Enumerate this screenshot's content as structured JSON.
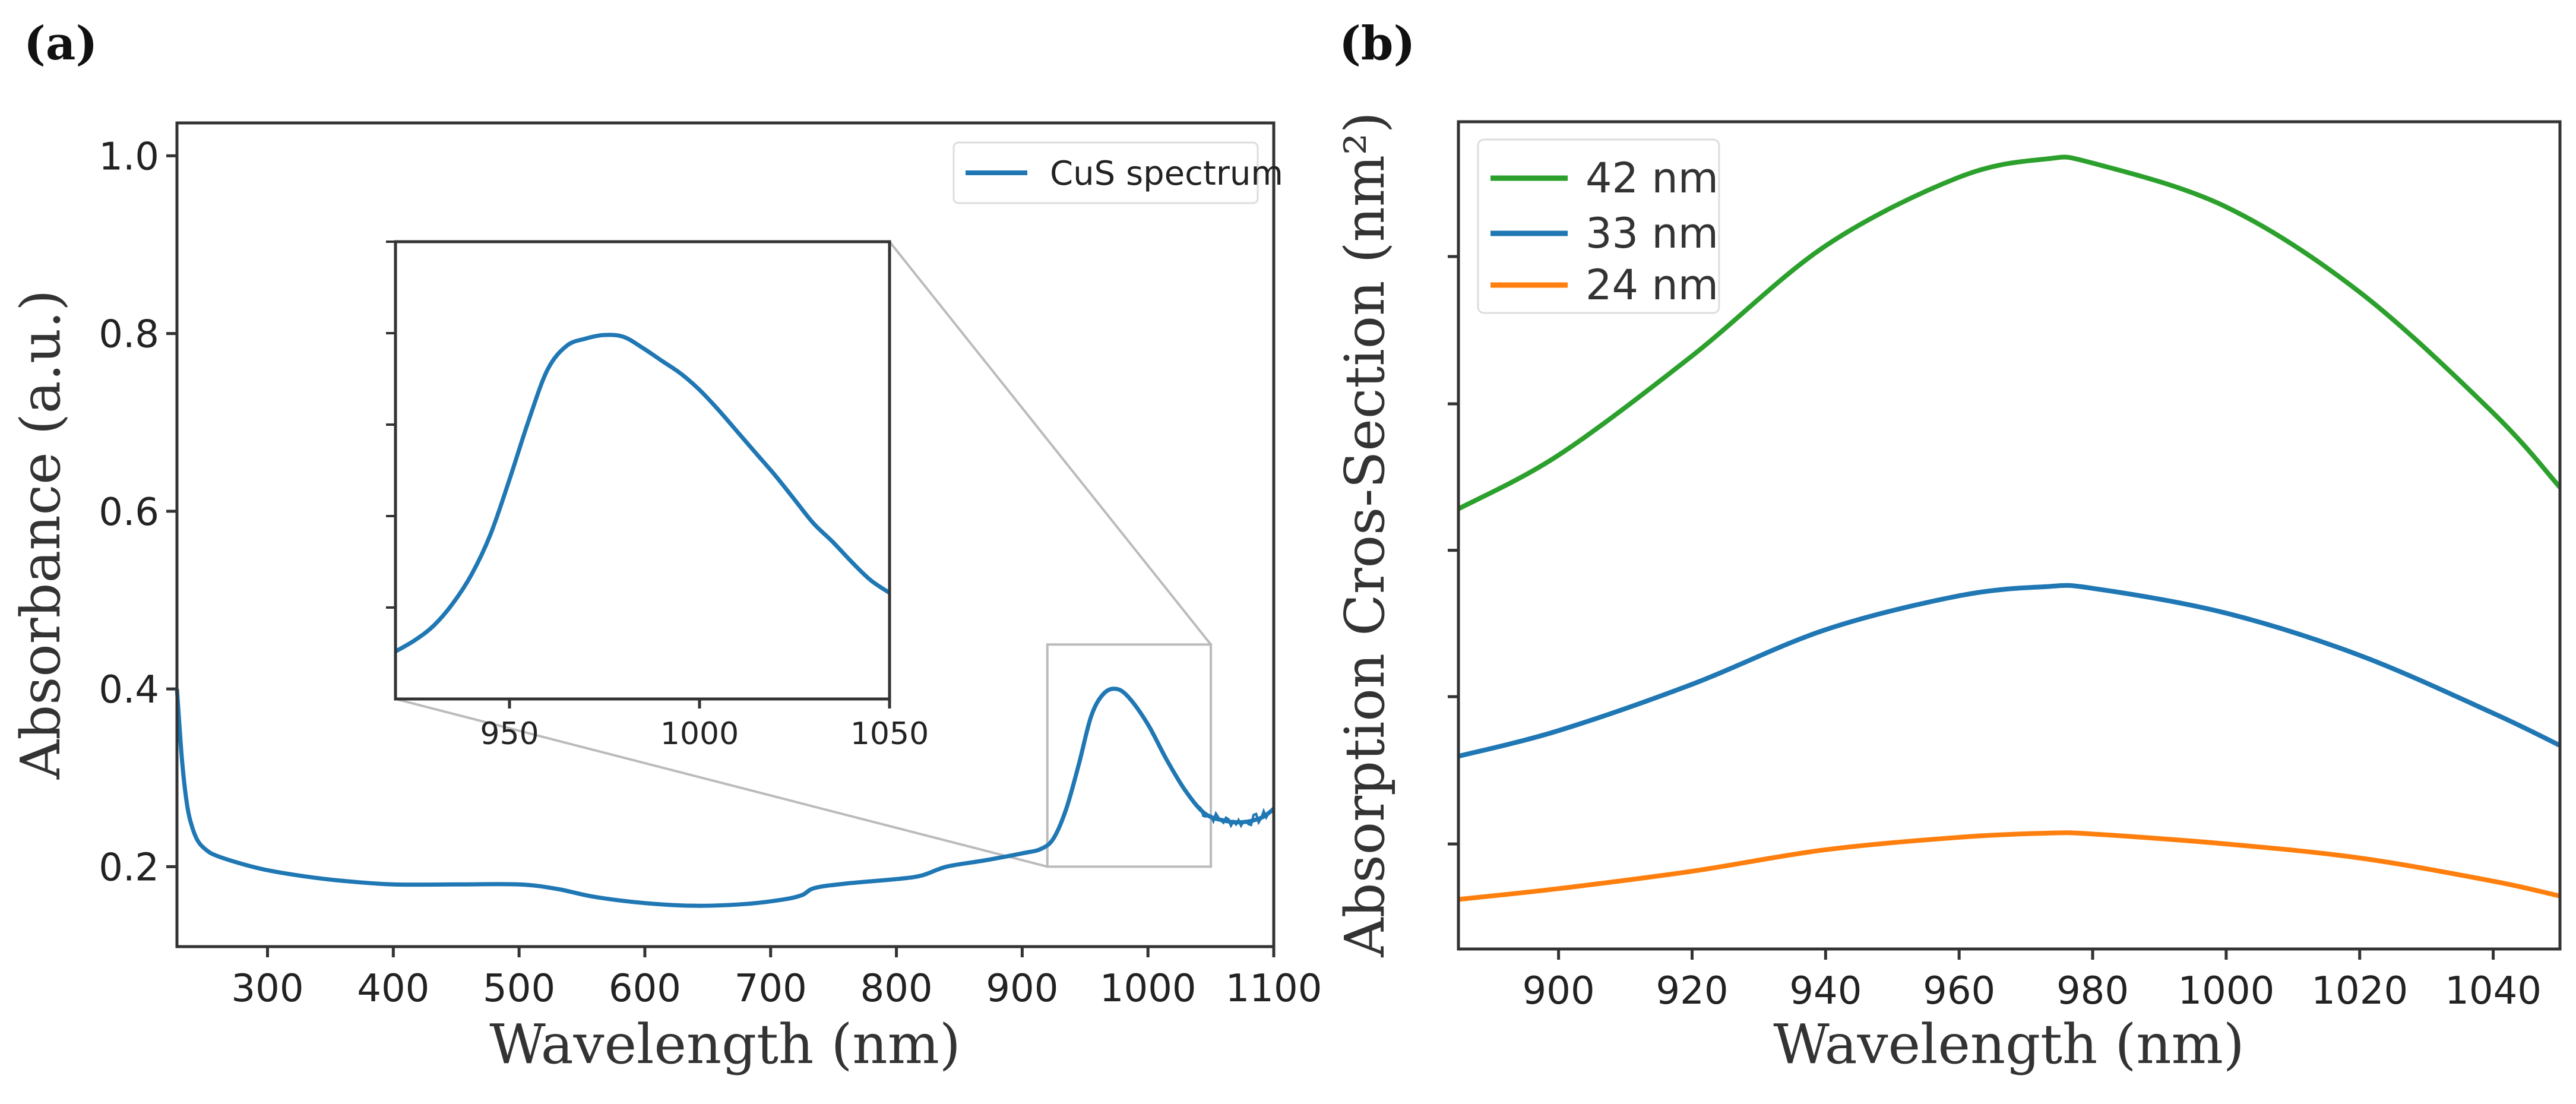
{
  "chart_data": [
    {
      "panel": "(a)",
      "type": "line",
      "xlabel": "Wavelength (nm)",
      "ylabel": "Absorbance (a.u.)",
      "xlim": [
        228,
        1100
      ],
      "ylim": [
        0.11,
        1.037
      ],
      "xticks": [
        300,
        400,
        500,
        600,
        700,
        800,
        900,
        1000,
        1100
      ],
      "yticks": [
        0.2,
        0.4,
        0.6,
        0.8,
        1.0
      ],
      "ytick_labels": [
        "0.2",
        "0.4",
        "0.6",
        "0.8",
        "1.0"
      ],
      "grid": false,
      "legend": {
        "placement": "top-right",
        "entries": [
          "CuS spectrum"
        ]
      },
      "series": [
        {
          "name": "CuS spectrum",
          "color": "#1f77b4",
          "x": [
            228,
            232,
            236,
            240,
            245,
            252,
            260,
            280,
            300,
            330,
            360,
            400,
            450,
            500,
            530,
            560,
            600,
            640,
            680,
            710,
            725,
            735,
            760,
            800,
            820,
            840,
            870,
            900,
            915,
            925,
            935,
            945,
            955,
            965,
            975,
            985,
            1000,
            1015,
            1030,
            1045,
            1060,
            1075,
            1090,
            1100
          ],
          "y": [
            0.4,
            0.32,
            0.27,
            0.245,
            0.228,
            0.218,
            0.212,
            0.203,
            0.196,
            0.189,
            0.184,
            0.18,
            0.18,
            0.18,
            0.175,
            0.166,
            0.159,
            0.156,
            0.158,
            0.163,
            0.168,
            0.176,
            0.181,
            0.186,
            0.19,
            0.2,
            0.207,
            0.215,
            0.22,
            0.232,
            0.265,
            0.315,
            0.37,
            0.395,
            0.4,
            0.39,
            0.36,
            0.32,
            0.285,
            0.26,
            0.252,
            0.25,
            0.255,
            0.265
          ]
        }
      ],
      "zoom_box": {
        "x": [
          920,
          1050
        ],
        "y": [
          0.2,
          0.45
        ]
      },
      "inset": {
        "xlim": [
          920,
          1050
        ],
        "ylim": [
          0.2,
          0.45
        ],
        "xticks": [
          950,
          1000,
          1050
        ],
        "yticks": [
          0.25,
          0.3,
          0.35,
          0.4
        ],
        "series": [
          {
            "name": "CuS spectrum (zoom)",
            "color": "#1f77b4",
            "x": [
              920,
              925,
              930,
              935,
              940,
              945,
              950,
              955,
              960,
              965,
              970,
              975,
              980,
              985,
              990,
              995,
              1000,
              1005,
              1010,
              1015,
              1020,
              1025,
              1030,
              1035,
              1040,
              1045,
              1050
            ],
            "y": [
              0.226,
              0.232,
              0.24,
              0.252,
              0.268,
              0.29,
              0.32,
              0.352,
              0.38,
              0.393,
              0.397,
              0.399,
              0.398,
              0.392,
              0.385,
              0.378,
              0.369,
              0.358,
              0.346,
              0.334,
              0.322,
              0.309,
              0.296,
              0.286,
              0.275,
              0.265,
              0.258
            ]
          }
        ]
      }
    },
    {
      "panel": "(b)",
      "type": "line",
      "xlabel": "Wavelength (nm)",
      "ylabel": "Absorption Cros-Section (nm²)",
      "xlim": [
        885,
        1050
      ],
      "ylim": [
        0,
        1
      ],
      "xticks": [
        900,
        920,
        940,
        960,
        980,
        1000,
        1020,
        1040
      ],
      "yticks": [
        0.127,
        0.305,
        0.482,
        0.659,
        0.837
      ],
      "grid": false,
      "legend": {
        "placement": "top-left",
        "entries": [
          "42 nm",
          "33 nm",
          "24 nm"
        ]
      },
      "series": [
        {
          "name": "42 nm",
          "color": "#2ca02c",
          "x": [
            885,
            900,
            920,
            940,
            960,
            973,
            980,
            1000,
            1020,
            1040,
            1050
          ],
          "y": [
            0.532,
            0.597,
            0.717,
            0.85,
            0.933,
            0.955,
            0.95,
            0.897,
            0.794,
            0.648,
            0.558
          ]
        },
        {
          "name": "33 nm",
          "color": "#1f77b4",
          "x": [
            885,
            900,
            920,
            940,
            960,
            973,
            980,
            1000,
            1020,
            1040,
            1050
          ],
          "y": [
            0.233,
            0.264,
            0.32,
            0.386,
            0.427,
            0.438,
            0.436,
            0.406,
            0.355,
            0.285,
            0.246
          ]
        },
        {
          "name": "24 nm",
          "color": "#ff7f0e",
          "x": [
            885,
            900,
            920,
            940,
            960,
            973,
            980,
            1000,
            1020,
            1040,
            1050
          ],
          "y": [
            0.06,
            0.073,
            0.094,
            0.12,
            0.135,
            0.14,
            0.139,
            0.127,
            0.11,
            0.082,
            0.064
          ]
        }
      ]
    }
  ]
}
